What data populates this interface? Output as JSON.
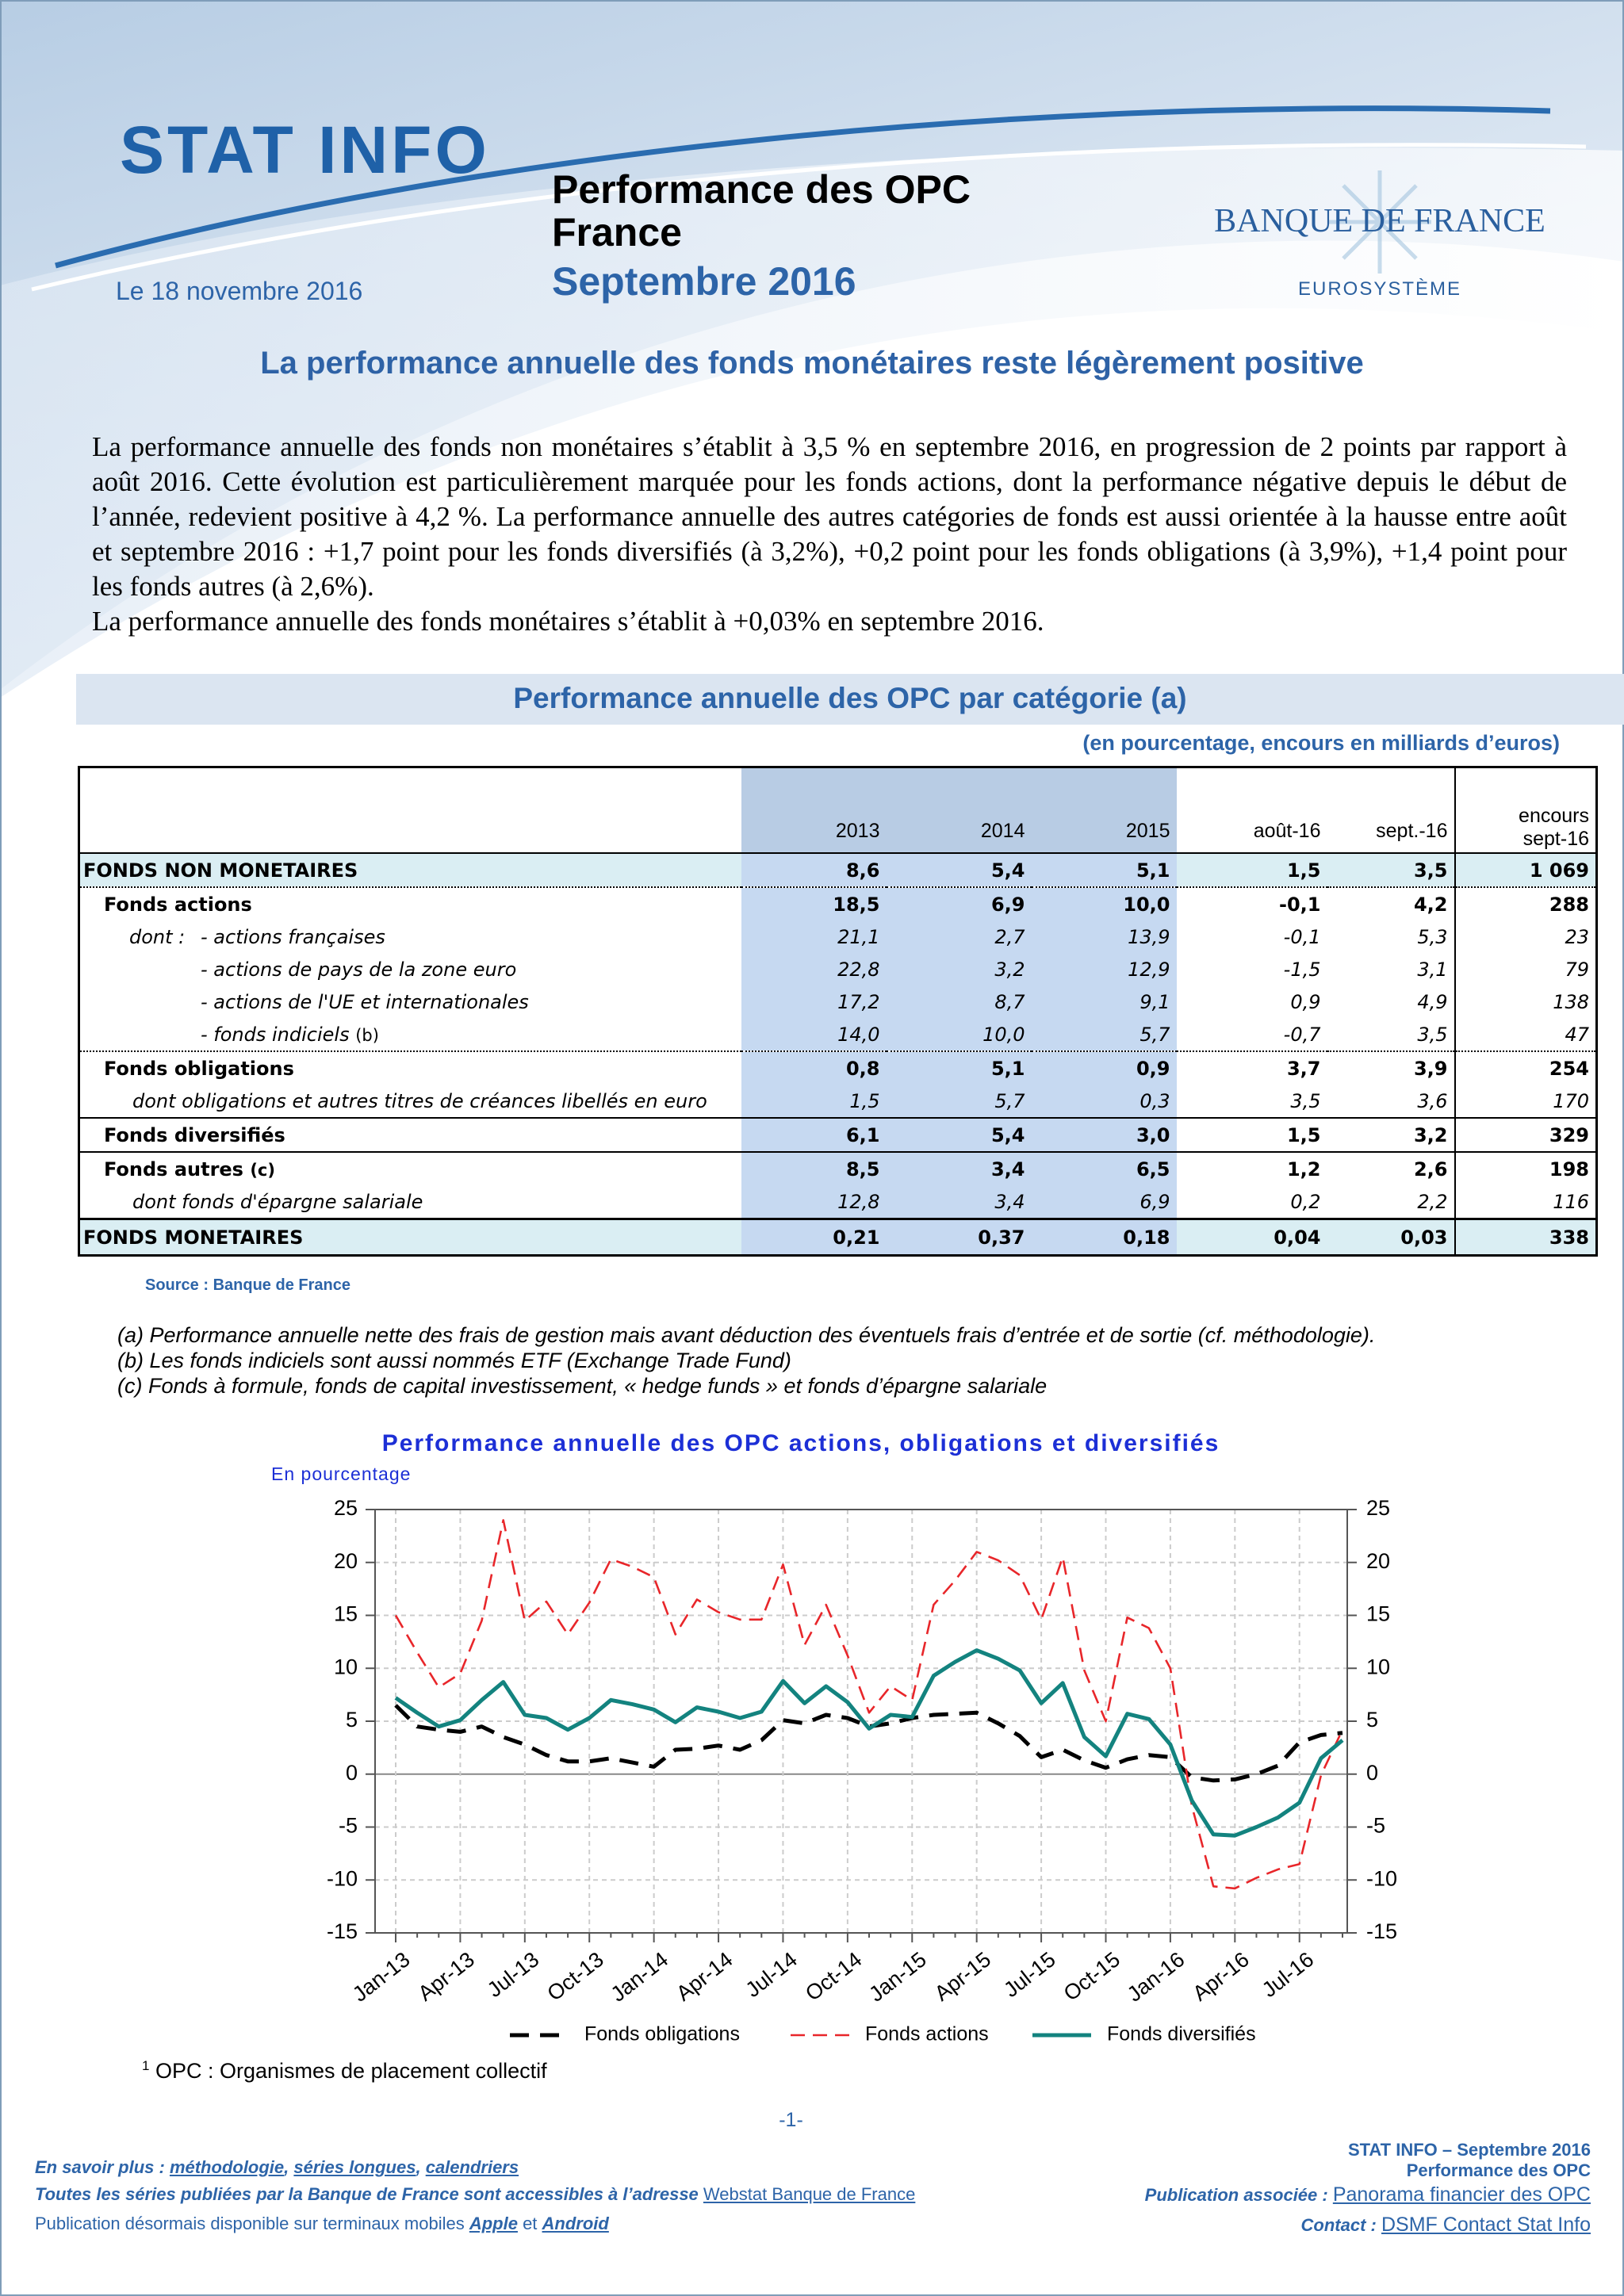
{
  "header": {
    "logo": "STAT INFO",
    "title_line1": "Performance des OPC",
    "title_line2": "France",
    "subtitle": "Septembre 2016",
    "date": "Le 18 novembre 2016",
    "bank": "BANQUE DE FRANCE",
    "bank_sub": "EUROSYSTÈME",
    "headline": "La performance annuelle des fonds monétaires reste légèrement positive"
  },
  "intro": [
    "La performance annuelle des fonds non monétaires s’établit à 3,5 % en septembre 2016, en progression de 2 points par rapport à août 2016. Cette évolution est particulièrement marquée pour les fonds actions, dont la performance négative depuis le début de l’année, redevient positive à 4,2 %. La performance annuelle des autres catégories de fonds est aussi orientée à la hausse entre août et septembre 2016 : +1,7 point pour les fonds diversifiés (à 3,2%), +0,2 point pour les fonds obligations (à 3,9%),  +1,4 point pour les fonds autres (à 2,6%).",
    "La performance annuelle des fonds monétaires s’établit à +0,03% en septembre 2016."
  ],
  "table": {
    "title": "Performance annuelle des OPC par catégorie (a)",
    "unit": "(en pourcentage, encours en milliards d’euros)",
    "columns": [
      "2013",
      "2014",
      "2015",
      "août-16",
      "sept.-16",
      [
        "encours",
        "sept-16"
      ]
    ],
    "rows": [
      {
        "label": "FONDS NON MONETAIRES",
        "values": [
          "8,6",
          "5,4",
          "5,1",
          "1,5",
          "3,5",
          "1 069"
        ]
      },
      {
        "label": "Fonds actions",
        "values": [
          "18,5",
          "6,9",
          "10,0",
          "-0,1",
          "4,2",
          "288"
        ]
      },
      {
        "prefix": "dont :",
        "label": "- actions françaises",
        "values": [
          "21,1",
          "2,7",
          "13,9",
          "-0,1",
          "5,3",
          "23"
        ]
      },
      {
        "label": "- actions de pays de la zone euro",
        "values": [
          "22,8",
          "3,2",
          "12,9",
          "-1,5",
          "3,1",
          "79"
        ]
      },
      {
        "label": "- actions de l'UE et internationales",
        "values": [
          "17,2",
          "8,7",
          "9,1",
          "0,9",
          "4,9",
          "138"
        ]
      },
      {
        "label": "- fonds indiciels",
        "note": "(b)",
        "values": [
          "14,0",
          "10,0",
          "5,7",
          "-0,7",
          "3,5",
          "47"
        ]
      },
      {
        "label": "Fonds obligations",
        "values": [
          "0,8",
          "5,1",
          "0,9",
          "3,7",
          "3,9",
          "254"
        ]
      },
      {
        "label": "dont  obligations et autres titres de créances libellés en euro",
        "values": [
          "1,5",
          "5,7",
          "0,3",
          "3,5",
          "3,6",
          "170"
        ]
      },
      {
        "label": "Fonds diversifiés",
        "values": [
          "6,1",
          "5,4",
          "3,0",
          "1,5",
          "3,2",
          "329"
        ]
      },
      {
        "label": "Fonds autres",
        "note": "(c)",
        "values": [
          "8,5",
          "3,4",
          "6,5",
          "1,2",
          "2,6",
          "198"
        ]
      },
      {
        "label": "dont  fonds d'épargne salariale",
        "values": [
          "12,8",
          "3,4",
          "6,9",
          "0,2",
          "2,2",
          "116"
        ]
      },
      {
        "label": "FONDS MONETAIRES",
        "values": [
          "0,21",
          "0,37",
          "0,18",
          "0,04",
          "0,03",
          "338"
        ]
      }
    ],
    "source": "Source : Banque de France"
  },
  "notes": [
    "(a) Performance annuelle nette des frais de gestion mais avant déduction des éventuels frais d’entrée et de sortie (cf. méthodologie).",
    "(b) Les fonds indiciels sont aussi nommés ETF (Exchange Trade Fund)",
    "(c) Fonds à formule, fonds de capital investissement, « hedge funds » et fonds d’épargne salariale"
  ],
  "chart_data": {
    "type": "line",
    "title": "Performance annuelle des OPC actions, obligations et diversifiés",
    "y_label": "En pourcentage",
    "categories": [
      "Jan-13",
      null,
      null,
      "Apr-13",
      null,
      null,
      "Jul-13",
      null,
      null,
      "Oct-13",
      null,
      null,
      "Jan-14",
      null,
      null,
      "Apr-14",
      null,
      null,
      "Jul-14",
      null,
      null,
      "Oct-14",
      null,
      null,
      "Jan-15",
      null,
      null,
      "Apr-15",
      null,
      null,
      "Jul-15",
      null,
      null,
      "Oct-15",
      null,
      null,
      "Jan-16",
      null,
      null,
      "Apr-16",
      null,
      null,
      "Jul-16",
      null,
      null
    ],
    "series": [
      {
        "name": "Fonds obligations",
        "color": "#000000",
        "line_style": "dashed",
        "values": [
          6.5,
          4.5,
          4.2,
          4,
          4.5,
          3.5,
          2.8,
          1.8,
          1.2,
          1.2,
          1.5,
          1.1,
          0.7,
          2.3,
          2.4,
          2.7,
          2.3,
          3.2,
          5.1,
          4.8,
          5.6,
          5.3,
          4.5,
          4.8,
          5.3,
          5.6,
          5.7,
          5.8,
          4.8,
          3.6,
          1.6,
          2.3,
          1.3,
          0.6,
          1.4,
          1.8,
          1.6,
          -0.3,
          -0.6,
          -0.5,
          0,
          0.8,
          3,
          3.7,
          3.9
        ]
      },
      {
        "name": "Fonds actions",
        "color": "#e8262a",
        "line_style": "dashed",
        "values": [
          15,
          11.5,
          8.2,
          9.5,
          14.5,
          24,
          14.5,
          16.3,
          13.2,
          16.2,
          20.3,
          19.6,
          18.6,
          13.2,
          16.5,
          15.3,
          14.6,
          14.6,
          19.8,
          12.2,
          16,
          11.2,
          5.8,
          8.3,
          7,
          16,
          18.3,
          21,
          20.2,
          18.8,
          14.6,
          20.5,
          9.8,
          5,
          14.8,
          13.8,
          10,
          -3,
          -10.6,
          -10.8,
          -9.8,
          -9,
          -8.5,
          -0.1,
          4.2
        ]
      },
      {
        "name": "Fonds diversifiés",
        "color": "#13837f",
        "line_style": "solid",
        "values": [
          7.2,
          5.8,
          4.5,
          5.1,
          7,
          8.7,
          5.6,
          5.3,
          4.2,
          5.3,
          7,
          6.6,
          6.1,
          4.9,
          6.3,
          5.9,
          5.3,
          5.9,
          8.8,
          6.7,
          8.3,
          6.8,
          4.3,
          5.6,
          5.4,
          9.3,
          10.6,
          11.7,
          10.9,
          9.8,
          6.7,
          8.6,
          3.5,
          1.7,
          5.7,
          5.2,
          2.8,
          -2.5,
          -5.7,
          -5.8,
          -5,
          -4.1,
          -2.7,
          1.5,
          3.2
        ]
      }
    ],
    "ylim": [
      -15,
      25
    ],
    "yticks": [
      -15,
      -10,
      -5,
      0,
      5,
      10,
      15,
      20,
      25
    ],
    "y2lim": [
      -15,
      25
    ],
    "y2ticks": [
      -15,
      -10,
      -5,
      0,
      5,
      10,
      15,
      20,
      25
    ],
    "grid": true,
    "legend": "bottom"
  },
  "footnote": {
    "mark": "1",
    "text": "OPC : Organismes de placement collectif"
  },
  "page_number": "-1-",
  "footer": {
    "left": [
      [
        {
          "text": "En savoir plus : "
        },
        {
          "text": "méthodologie",
          "link": true
        },
        {
          "text": ", "
        },
        {
          "text": "séries longues",
          "link": true
        },
        {
          "text": ", "
        },
        {
          "text": "calendriers",
          "link": true
        }
      ],
      [
        {
          "text": "Toutes les séries publiées par la Banque de France sont accessibles à l’adresse "
        },
        {
          "text": "Webstat Banque de France",
          "link": true
        }
      ],
      [
        {
          "text": "Publication désormais disponible sur terminaux mobiles "
        },
        {
          "text": "Apple",
          "link": true
        },
        {
          "text": " et "
        },
        {
          "text": "Android",
          "link": true
        }
      ]
    ],
    "right": [
      [
        {
          "text": "STAT INFO – Septembre 2016"
        }
      ],
      [
        {
          "text": "Performance des OPC"
        }
      ],
      [
        {
          "text": "Publication associée :  "
        },
        {
          "text": "Panorama financier des OPC",
          "link": true
        }
      ],
      [
        {
          "text": "Contact : "
        },
        {
          "text": "DSMF Contact Stat Info",
          "link": true
        }
      ]
    ]
  }
}
